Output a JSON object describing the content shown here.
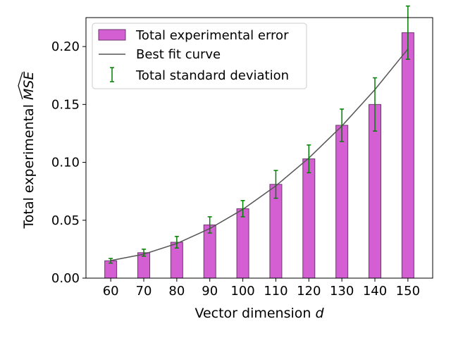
{
  "chart_data": {
    "type": "bar",
    "title": "",
    "xlabel": "Vector dimension",
    "xlabel_var": "d",
    "ylabel": "Total experimental",
    "ylabel_var": "MSE",
    "categories": [
      "60",
      "70",
      "80",
      "90",
      "100",
      "110",
      "120",
      "130",
      "140",
      "150"
    ],
    "x": [
      60,
      70,
      80,
      90,
      100,
      110,
      120,
      130,
      140,
      150
    ],
    "ylim": [
      0,
      0.225
    ],
    "yticks": [
      0.0,
      0.05,
      0.1,
      0.15,
      0.2
    ],
    "ytick_labels": [
      "0.00",
      "0.05",
      "0.10",
      "0.15",
      "0.20"
    ],
    "series": [
      {
        "name": "Total experimental error",
        "kind": "bar",
        "color": "#d35fd3",
        "edgecolor": "#6b3a6b",
        "values": [
          0.015,
          0.022,
          0.031,
          0.046,
          0.06,
          0.081,
          0.103,
          0.132,
          0.15,
          0.212
        ]
      },
      {
        "name": "Best fit curve",
        "kind": "line",
        "color": "#555555",
        "values": [
          0.0152,
          0.0207,
          0.0299,
          0.0428,
          0.0594,
          0.0797,
          0.1037,
          0.1314,
          0.1628,
          0.1979
        ]
      },
      {
        "name": "Total standard deviation",
        "kind": "errorbar",
        "color": "#008000",
        "center": [
          0.015,
          0.022,
          0.031,
          0.046,
          0.06,
          0.081,
          0.103,
          0.132,
          0.15,
          0.212
        ],
        "error": [
          0.002,
          0.003,
          0.005,
          0.007,
          0.007,
          0.012,
          0.012,
          0.014,
          0.023,
          0.023
        ]
      }
    ],
    "legend": {
      "position": "top-left",
      "entries": [
        "Total experimental error",
        "Best fit curve",
        "Total standard deviation"
      ]
    }
  }
}
